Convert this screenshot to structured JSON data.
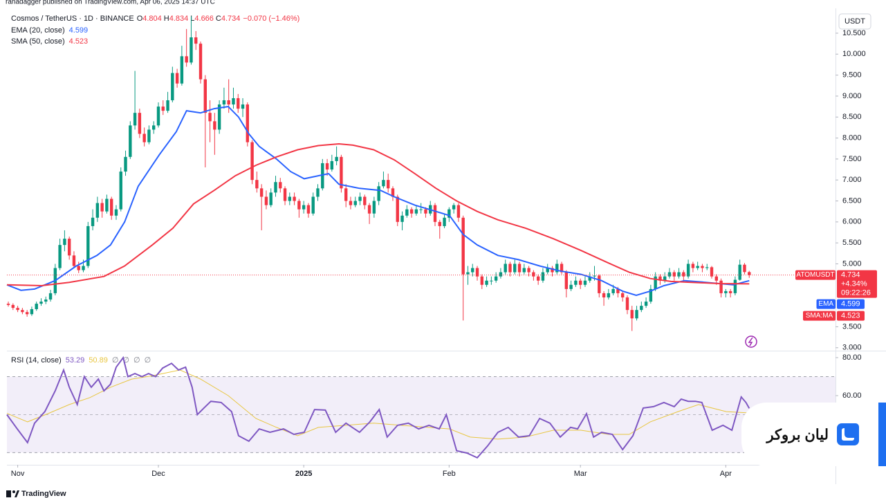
{
  "header": "ranadagger published on TradingView.com, Apr 06, 2025 14:37 UTC",
  "footer": "TradingView",
  "watermark": "لیان بروکر",
  "chart_data": {
    "type": "candlestick",
    "symbol": "Cosmos / TetherUS · 1D · BINANCE",
    "ohlc_labels": [
      "O",
      "H",
      "L",
      "C"
    ],
    "change": {
      "value": -0.07,
      "label": "−0.070"
    },
    "change_pct": {
      "value": -1.46,
      "label": "(−1.46%)"
    },
    "currency": "USDT",
    "up_color": "#089981",
    "down_color": "#f23645",
    "xlim": [
      -0.3,
      176.4
    ],
    "ylim": [
      2.93,
      11.06
    ],
    "grid": false,
    "xticks": [
      {
        "value": 2,
        "label": "Nov"
      },
      {
        "value": 32,
        "label": "Dec"
      },
      {
        "value": 63,
        "label": "2025"
      },
      {
        "value": 94,
        "label": "Feb"
      },
      {
        "value": 122,
        "label": "Mar"
      },
      {
        "value": 153,
        "label": "Apr"
      }
    ],
    "yticks": [
      {
        "value": 3,
        "label": "3.000"
      },
      {
        "value": 3.5,
        "label": "3.500"
      },
      {
        "value": 5,
        "label": "5.000"
      },
      {
        "value": 5.5,
        "label": "5.500"
      },
      {
        "value": 6,
        "label": "6.000"
      },
      {
        "value": 6.5,
        "label": "6.500"
      },
      {
        "value": 7,
        "label": "7.000"
      },
      {
        "value": 7.5,
        "label": "7.500"
      },
      {
        "value": 8,
        "label": "8.000"
      },
      {
        "value": 8.5,
        "label": "8.500"
      },
      {
        "value": 9,
        "label": "9.000"
      },
      {
        "value": 9.5,
        "label": "9.500"
      },
      {
        "value": 10,
        "label": "10.000"
      },
      {
        "value": 10.5,
        "label": "10.500"
      }
    ],
    "candles": [
      [
        4.05,
        4.1,
        3.98,
        4.02
      ],
      [
        4.02,
        4.06,
        3.9,
        3.95
      ],
      [
        3.95,
        4.0,
        3.85,
        3.9
      ],
      [
        3.9,
        3.95,
        3.8,
        3.85
      ],
      [
        3.85,
        3.9,
        3.74,
        3.8
      ],
      [
        3.8,
        3.98,
        3.76,
        3.92
      ],
      [
        3.92,
        4.1,
        3.88,
        4.05
      ],
      [
        4.05,
        4.18,
        4.0,
        4.1
      ],
      [
        4.1,
        4.22,
        4.04,
        4.15
      ],
      [
        4.15,
        4.38,
        4.1,
        4.3
      ],
      [
        4.3,
        5.0,
        4.25,
        4.9
      ],
      [
        4.9,
        5.6,
        4.85,
        5.45
      ],
      [
        5.45,
        5.8,
        5.3,
        5.6
      ],
      [
        5.6,
        5.65,
        5.1,
        5.2
      ],
      [
        5.2,
        5.3,
        4.9,
        4.95
      ],
      [
        4.95,
        5.05,
        4.78,
        4.85
      ],
      [
        4.85,
        5.1,
        4.8,
        4.95
      ],
      [
        4.95,
        6.0,
        4.9,
        5.9
      ],
      [
        5.9,
        6.3,
        5.8,
        6.1
      ],
      [
        6.1,
        6.6,
        6.0,
        6.45
      ],
      [
        6.45,
        6.55,
        6.1,
        6.25
      ],
      [
        6.25,
        6.65,
        6.2,
        6.55
      ],
      [
        6.55,
        6.6,
        6.05,
        6.15
      ],
      [
        6.15,
        6.4,
        6.05,
        6.3
      ],
      [
        6.3,
        7.3,
        6.25,
        7.2
      ],
      [
        7.2,
        7.7,
        7.1,
        7.55
      ],
      [
        7.55,
        8.4,
        7.5,
        8.3
      ],
      [
        8.3,
        9.6,
        8.2,
        8.6
      ],
      [
        8.6,
        8.7,
        8.0,
        8.1
      ],
      [
        8.1,
        8.25,
        7.8,
        7.9
      ],
      [
        7.9,
        8.3,
        7.85,
        8.2
      ],
      [
        8.2,
        8.4,
        8.1,
        8.3
      ],
      [
        8.3,
        8.85,
        8.25,
        8.75
      ],
      [
        8.75,
        8.9,
        8.55,
        8.65
      ],
      [
        8.65,
        9.1,
        8.6,
        8.9
      ],
      [
        8.9,
        9.7,
        8.85,
        9.55
      ],
      [
        9.55,
        9.65,
        9.2,
        9.3
      ],
      [
        9.3,
        10.2,
        9.25,
        9.95
      ],
      [
        9.95,
        10.6,
        9.7,
        9.8
      ],
      [
        9.8,
        10.9,
        9.75,
        10.4
      ],
      [
        10.4,
        10.55,
        10.1,
        10.25
      ],
      [
        10.25,
        10.3,
        9.3,
        9.4
      ],
      [
        9.4,
        9.5,
        7.3,
        8.6
      ],
      [
        8.6,
        8.9,
        7.9,
        8.4
      ],
      [
        8.4,
        8.6,
        7.6,
        8.2
      ],
      [
        8.2,
        8.9,
        8.1,
        8.8
      ],
      [
        8.8,
        9.2,
        8.7,
        8.9
      ],
      [
        8.9,
        9.4,
        8.6,
        8.8
      ],
      [
        8.8,
        9.2,
        8.7,
        8.95
      ],
      [
        8.95,
        9.05,
        8.6,
        8.7
      ],
      [
        8.7,
        8.95,
        8.5,
        8.8
      ],
      [
        8.8,
        8.85,
        7.8,
        7.9
      ],
      [
        7.9,
        7.95,
        6.9,
        7.0
      ],
      [
        7.0,
        7.2,
        6.7,
        6.8
      ],
      [
        6.8,
        6.9,
        5.8,
        6.6
      ],
      [
        6.6,
        6.75,
        6.3,
        6.4
      ],
      [
        6.4,
        6.8,
        6.35,
        6.7
      ],
      [
        6.7,
        7.1,
        6.6,
        6.95
      ],
      [
        6.95,
        7.05,
        6.7,
        6.8
      ],
      [
        6.8,
        6.85,
        6.4,
        6.5
      ],
      [
        6.5,
        6.7,
        6.4,
        6.6
      ],
      [
        6.6,
        6.7,
        6.4,
        6.5
      ],
      [
        6.5,
        6.55,
        6.1,
        6.3
      ],
      [
        6.3,
        6.5,
        6.2,
        6.4
      ],
      [
        6.4,
        6.45,
        6.1,
        6.2
      ],
      [
        6.2,
        6.7,
        6.15,
        6.6
      ],
      [
        6.6,
        6.9,
        6.5,
        6.8
      ],
      [
        6.8,
        7.5,
        6.75,
        7.4
      ],
      [
        7.4,
        7.5,
        7.1,
        7.25
      ],
      [
        7.25,
        7.6,
        7.2,
        7.45
      ],
      [
        7.45,
        7.8,
        7.35,
        7.55
      ],
      [
        7.55,
        7.6,
        6.7,
        6.8
      ],
      [
        6.8,
        6.9,
        6.35,
        6.5
      ],
      [
        6.5,
        6.6,
        6.3,
        6.4
      ],
      [
        6.4,
        6.6,
        6.35,
        6.5
      ],
      [
        6.5,
        6.7,
        6.4,
        6.6
      ],
      [
        6.6,
        6.65,
        6.3,
        6.4
      ],
      [
        6.4,
        6.45,
        5.95,
        6.2
      ],
      [
        6.2,
        6.6,
        6.1,
        6.5
      ],
      [
        6.5,
        6.95,
        6.4,
        6.85
      ],
      [
        6.85,
        7.2,
        6.8,
        7.0
      ],
      [
        7.0,
        7.15,
        6.7,
        6.8
      ],
      [
        6.8,
        6.85,
        6.5,
        6.6
      ],
      [
        6.6,
        6.65,
        5.9,
        6.0
      ],
      [
        6.0,
        6.25,
        5.8,
        6.15
      ],
      [
        6.15,
        6.4,
        6.1,
        6.3
      ],
      [
        6.3,
        6.35,
        6.1,
        6.2
      ],
      [
        6.2,
        6.4,
        6.15,
        6.3
      ],
      [
        6.3,
        6.45,
        6.2,
        6.3
      ],
      [
        6.3,
        6.35,
        6.1,
        6.2
      ],
      [
        6.2,
        6.5,
        6.15,
        6.4
      ],
      [
        6.4,
        6.45,
        5.9,
        6.0
      ],
      [
        6.0,
        6.05,
        5.6,
        5.9
      ],
      [
        5.9,
        6.2,
        5.85,
        6.1
      ],
      [
        6.1,
        6.35,
        6.0,
        6.3
      ],
      [
        6.3,
        6.45,
        6.2,
        6.4
      ],
      [
        6.4,
        6.45,
        6.0,
        6.1
      ],
      [
        6.1,
        6.15,
        3.65,
        4.75
      ],
      [
        4.75,
        4.95,
        4.5,
        4.8
      ],
      [
        4.8,
        5.0,
        4.7,
        4.9
      ],
      [
        4.9,
        4.95,
        4.6,
        4.7
      ],
      [
        4.7,
        4.75,
        4.4,
        4.5
      ],
      [
        4.5,
        4.7,
        4.45,
        4.6
      ],
      [
        4.6,
        4.7,
        4.5,
        4.6
      ],
      [
        4.6,
        4.8,
        4.55,
        4.7
      ],
      [
        4.7,
        4.9,
        4.65,
        4.8
      ],
      [
        4.8,
        5.1,
        4.75,
        5.0
      ],
      [
        5.0,
        5.05,
        4.7,
        4.8
      ],
      [
        4.8,
        5.1,
        4.75,
        5.0
      ],
      [
        5.0,
        5.05,
        4.7,
        4.8
      ],
      [
        4.8,
        5.0,
        4.75,
        4.9
      ],
      [
        4.9,
        4.95,
        4.7,
        4.8
      ],
      [
        4.8,
        4.85,
        4.6,
        4.7
      ],
      [
        4.7,
        4.75,
        4.5,
        4.6
      ],
      [
        4.6,
        4.9,
        4.55,
        4.8
      ],
      [
        4.8,
        5.0,
        4.75,
        4.9
      ],
      [
        4.9,
        4.95,
        4.7,
        4.8
      ],
      [
        4.8,
        5.1,
        4.75,
        5.0
      ],
      [
        5.0,
        5.05,
        4.75,
        4.8
      ],
      [
        4.8,
        4.85,
        4.2,
        4.4
      ],
      [
        4.4,
        4.6,
        4.35,
        4.5
      ],
      [
        4.5,
        4.7,
        4.45,
        4.6
      ],
      [
        4.6,
        4.65,
        4.4,
        4.5
      ],
      [
        4.5,
        4.7,
        4.45,
        4.6
      ],
      [
        4.6,
        4.8,
        4.55,
        4.7
      ],
      [
        4.7,
        4.95,
        4.6,
        4.72
      ],
      [
        4.72,
        4.75,
        4.2,
        4.3
      ],
      [
        4.3,
        4.35,
        4.0,
        4.2
      ],
      [
        4.2,
        4.4,
        4.15,
        4.3
      ],
      [
        4.3,
        4.5,
        4.25,
        4.4
      ],
      [
        4.4,
        4.45,
        4.2,
        4.3
      ],
      [
        4.3,
        4.35,
        4.1,
        4.2
      ],
      [
        4.2,
        4.25,
        3.8,
        3.9
      ],
      [
        3.9,
        4.0,
        3.4,
        3.7
      ],
      [
        3.7,
        4.0,
        3.65,
        3.9
      ],
      [
        3.9,
        4.1,
        3.85,
        4.0
      ],
      [
        4.0,
        4.2,
        3.95,
        4.1
      ],
      [
        4.1,
        4.5,
        4.05,
        4.4
      ],
      [
        4.4,
        4.8,
        4.35,
        4.7
      ],
      [
        4.7,
        4.75,
        4.5,
        4.6
      ],
      [
        4.6,
        4.8,
        4.55,
        4.7
      ],
      [
        4.7,
        4.9,
        4.65,
        4.8
      ],
      [
        4.8,
        4.85,
        4.6,
        4.7
      ],
      [
        4.7,
        4.9,
        4.65,
        4.8
      ],
      [
        4.8,
        4.85,
        4.6,
        4.7
      ],
      [
        4.7,
        5.1,
        4.65,
        5.0
      ],
      [
        5.0,
        5.05,
        4.8,
        4.9
      ],
      [
        4.9,
        5.05,
        4.85,
        4.95
      ],
      [
        4.95,
        5.0,
        4.8,
        4.9
      ],
      [
        4.9,
        5.0,
        4.85,
        4.92
      ],
      [
        4.92,
        4.95,
        4.65,
        4.7
      ],
      [
        4.7,
        4.75,
        4.5,
        4.6
      ],
      [
        4.6,
        4.65,
        4.2,
        4.3
      ],
      [
        4.3,
        4.4,
        4.2,
        4.35
      ],
      [
        4.35,
        4.4,
        4.2,
        4.3
      ],
      [
        4.3,
        4.7,
        4.25,
        4.62
      ],
      [
        4.62,
        5.1,
        4.6,
        4.98
      ],
      [
        4.98,
        5.02,
        4.75,
        4.804
      ],
      [
        4.804,
        4.834,
        4.666,
        4.734
      ]
    ],
    "series": [
      {
        "name": "EMA (20, close)",
        "tag": "EMA",
        "color": "#2962ff",
        "x": [
          -0.3,
          2.7,
          5.6,
          10,
          14.5,
          18.9,
          21.8,
          24.8,
          27.7,
          32.2,
          35.8,
          38,
          41,
          43.9,
          46.9,
          49.1,
          51.3,
          53.5,
          57.2,
          60.2,
          63.1,
          66.1,
          68.3,
          70.5,
          74.9,
          79.4,
          82.3,
          86.7,
          91.2,
          94.1,
          97,
          100,
          104.4,
          108.8,
          113.3,
          117.7,
          122.1,
          126.5,
          131,
          133.9,
          136.9,
          139.8,
          144.2,
          148.7,
          151.6,
          154.6,
          158
        ],
        "values": [
          4.5,
          4.37,
          4.4,
          4.6,
          4.95,
          5.2,
          5.45,
          6.0,
          6.85,
          7.6,
          8.15,
          8.65,
          8.6,
          8.7,
          8.75,
          8.5,
          8.1,
          7.8,
          7.5,
          7.2,
          7.03,
          7.1,
          7.15,
          6.9,
          6.8,
          6.75,
          6.6,
          6.4,
          6.25,
          6.15,
          5.7,
          5.45,
          5.2,
          5.1,
          4.95,
          4.83,
          4.75,
          4.6,
          4.35,
          4.25,
          4.35,
          4.48,
          4.6,
          4.56,
          4.53,
          4.5,
          4.599
        ]
      },
      {
        "name": "SMA (50, close)",
        "tag": "SMA:MA",
        "color": "#f23645",
        "x": [
          -0.3,
          7.1,
          13,
          20.4,
          24.8,
          30.7,
          35.1,
          39.5,
          44,
          48.4,
          52.8,
          57.2,
          61.7,
          66.1,
          70.5,
          73.5,
          77.9,
          82.3,
          86.7,
          91.2,
          95.6,
          100,
          104.4,
          110.3,
          116.2,
          122.1,
          128,
          132.4,
          136.9,
          141.3,
          145.7,
          151.6,
          158
        ],
        "values": [
          4.5,
          4.48,
          4.56,
          4.7,
          4.95,
          5.45,
          5.85,
          6.43,
          6.76,
          7.1,
          7.35,
          7.55,
          7.72,
          7.82,
          7.86,
          7.83,
          7.72,
          7.48,
          7.15,
          6.8,
          6.5,
          6.25,
          6.05,
          5.85,
          5.6,
          5.32,
          5.02,
          4.8,
          4.65,
          4.58,
          4.56,
          4.53,
          4.523
        ]
      }
    ],
    "price_tag": {
      "name": "ATOMUSDT",
      "change": "+4.34%",
      "countdown": "09:22:26"
    },
    "rsi": {
      "title": "RSI (14, close)",
      "color": "#7e57c2",
      "ma_color": "#e8c640",
      "ylim": [
        23.6,
        83.3
      ],
      "yticks": [
        {
          "value": 60,
          "label": "60.00"
        },
        {
          "value": 80,
          "label": "80.00"
        }
      ],
      "bands": [
        70,
        50,
        30
      ],
      "markers": [
        "∅",
        "∅",
        "∅",
        "∅"
      ],
      "x": [
        -0.3,
        1.9,
        4.1,
        5.6,
        7.8,
        10,
        11.8,
        13,
        14.7,
        16.2,
        17.7,
        19.2,
        20.4,
        21.8,
        23,
        24.5,
        25.5,
        27,
        28.5,
        29.9,
        31.4,
        32.9,
        34.8,
        36.3,
        37.8,
        39.2,
        40.3,
        41.7,
        43.2,
        45.4,
        47.6,
        49.1,
        51.3,
        53.5,
        55.8,
        58.7,
        60.9,
        63.1,
        65.3,
        67.6,
        69.8,
        72,
        74.9,
        77.1,
        79.1,
        80.8,
        83,
        85.3,
        87.5,
        89.7,
        91.9,
        93.4,
        95.6,
        97.8,
        100,
        102.2,
        104.4,
        106.6,
        108.8,
        111.1,
        113.3,
        115.5,
        117.7,
        119.9,
        121.4,
        123.3,
        124.8,
        126.5,
        128.8,
        131,
        133.2,
        135.4,
        137.6,
        139.8,
        142,
        143.5,
        145,
        146.5,
        147.9,
        150.1,
        152.4,
        154.3,
        156.3,
        157.3,
        158
      ],
      "values": [
        50,
        42.5,
        35.3,
        45.5,
        51.6,
        62.5,
        73.5,
        64.4,
        55.3,
        70,
        64.4,
        68.7,
        62.5,
        66,
        75,
        80,
        70,
        71.6,
        70,
        71.6,
        70,
        74.5,
        77,
        73.5,
        75,
        64.4,
        50,
        53.5,
        57,
        56.4,
        51.6,
        38.9,
        36,
        42.5,
        40.7,
        42.5,
        39.6,
        40.7,
        52.7,
        52.4,
        40.7,
        45.5,
        40.7,
        46.2,
        52.7,
        38.2,
        44.4,
        45.5,
        42.5,
        44.4,
        42.5,
        50,
        31,
        29.8,
        27.3,
        33.5,
        40.7,
        43.3,
        38.2,
        38.9,
        48,
        45.5,
        38.2,
        43.3,
        42.5,
        50.5,
        38.2,
        40.7,
        39.6,
        31.6,
        38.9,
        53.5,
        54.2,
        56.4,
        54.2,
        58.2,
        57,
        57,
        56.4,
        41.8,
        44.4,
        41.8,
        59.3,
        56.4,
        53.29
      ],
      "ma_x": [
        -0.3,
        4.1,
        8.6,
        13,
        17.4,
        21.8,
        26.3,
        30.7,
        36.6,
        41,
        46.9,
        52.8,
        57.2,
        61.7,
        66.1,
        72,
        77.9,
        83.8,
        89.7,
        94.1,
        98.5,
        104.4,
        110.3,
        116.2,
        122.1,
        128,
        132.4,
        136.9,
        142.8,
        147.2,
        153.1,
        158
      ],
      "ma_values": [
        50.7,
        46.2,
        50.7,
        55.3,
        59,
        64.4,
        68.7,
        70.5,
        73.5,
        68.7,
        60,
        48,
        43.3,
        38.9,
        43.3,
        44.4,
        45.5,
        44.4,
        43.3,
        42.5,
        38.2,
        37.1,
        38.2,
        41.8,
        41.8,
        39.6,
        39.6,
        46.2,
        51.6,
        55.3,
        51.6,
        50.89
      ]
    }
  }
}
